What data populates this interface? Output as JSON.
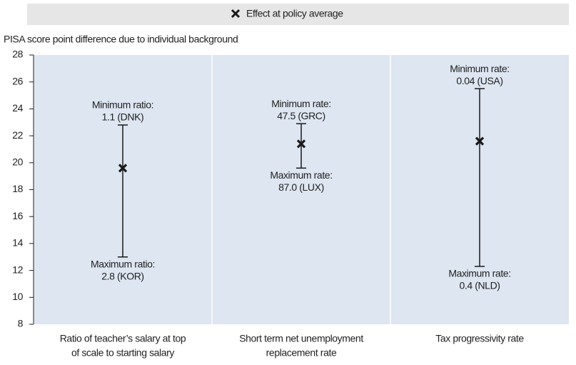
{
  "chart_data": {
    "type": "range",
    "y_label": "PISA score point difference due to individual background",
    "categories": [
      [
        "Ratio of teacher’s salary at top",
        "of scale to starting salary"
      ],
      [
        "Short term net unemployment",
        "replacement rate"
      ],
      [
        "Tax progressivity rate"
      ]
    ],
    "series": [
      {
        "name": "Effect at policy average",
        "color": "#1a1a1a",
        "values": [
          19.6,
          21.4,
          21.6
        ],
        "upper": [
          22.8,
          22.9,
          25.5
        ],
        "lower": [
          13.0,
          19.6,
          12.3
        ]
      }
    ],
    "upper_labels": [
      [
        "Minimum ratio:",
        "1.1 (DNK)"
      ],
      [
        "Minimum rate:",
        "47.5 (GRC)"
      ],
      [
        "Minimum rate:",
        "0.04 (USA)"
      ]
    ],
    "lower_labels": [
      [
        "Maximum ratio:",
        "2.8 (KOR)"
      ],
      [
        "Maximum rate:",
        "87.0 (LUX)"
      ],
      [
        "Maximum rate:",
        "0.4 (NLD)"
      ]
    ],
    "ylim": [
      8,
      28
    ],
    "yticks": [
      8,
      10,
      12,
      14,
      16,
      18,
      20,
      22,
      24,
      26,
      28
    ],
    "plot_background": "#dde6f1",
    "legend": "top"
  }
}
